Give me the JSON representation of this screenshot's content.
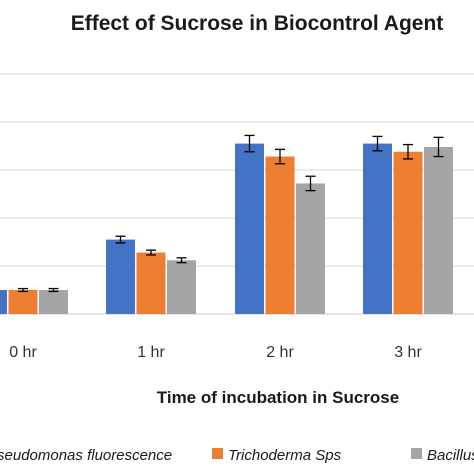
{
  "chart_data": {
    "type": "bar",
    "title": "Effect of Sucrose in Biocontrol Agent",
    "xlabel": "Time of incubation in Sucrose",
    "ylabel": "",
    "categories": [
      "0 hr",
      "1 hr",
      "2 hr",
      "3 hr"
    ],
    "series": [
      {
        "name": "Pseudomonas fluorescence",
        "color": "#4472C4",
        "values": [
          0.5,
          1.55,
          3.55,
          3.55
        ],
        "errors": [
          0.03,
          0.07,
          0.17,
          0.15
        ]
      },
      {
        "name": "Trichoderma Sps",
        "color": "#ED7D31",
        "values": [
          0.5,
          1.28,
          3.28,
          3.38
        ],
        "errors": [
          0.03,
          0.05,
          0.15,
          0.15
        ]
      },
      {
        "name": "Bacillus subtilis",
        "color": "#A5A5A5",
        "values": [
          0.5,
          1.12,
          2.72,
          3.48
        ],
        "errors": [
          0.03,
          0.05,
          0.15,
          0.2
        ]
      }
    ],
    "ylim": [
      0,
      5
    ],
    "grid": true,
    "legend": "bottom"
  }
}
